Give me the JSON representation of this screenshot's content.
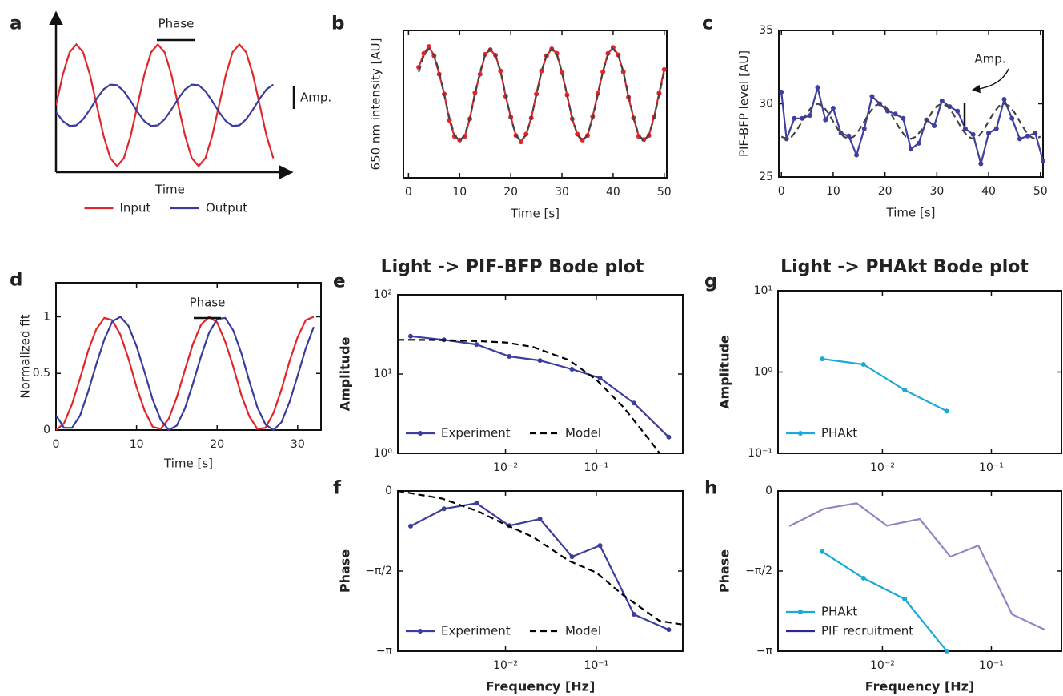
{
  "chart_data": [
    {
      "label": "a",
      "type": "line",
      "frame": "arrows",
      "xlabel": "Time",
      "xlim": [
        0,
        8.4
      ],
      "ylim": [
        -1.1,
        1.4
      ],
      "x": [
        0,
        0.25,
        0.5,
        0.75,
        1,
        1.25,
        1.5,
        1.75,
        2,
        2.25,
        2.5,
        2.75,
        3,
        3.25,
        3.5,
        3.75,
        4,
        4.25,
        4.5,
        4.75,
        5,
        5.25,
        5.5,
        5.75,
        6,
        6.25,
        6.5,
        6.75,
        7,
        7.25,
        7.5,
        7.75,
        8
      ],
      "series": [
        {
          "name": "Input",
          "color": "#e0262b",
          "values": [
            0,
            0.5,
            0.87,
            1,
            0.87,
            0.5,
            0,
            -0.5,
            -0.87,
            -1,
            -0.87,
            -0.5,
            0,
            0.5,
            0.87,
            1,
            0.87,
            0.5,
            0,
            -0.5,
            -0.87,
            -1,
            -0.87,
            -0.5,
            0,
            0.5,
            0.87,
            1,
            0.87,
            0.5,
            0,
            -0.5,
            -0.87
          ]
        },
        {
          "name": "Output",
          "color": "#3b3b9e",
          "values": [
            -0.11,
            -0.26,
            -0.34,
            -0.33,
            -0.23,
            -0.07,
            0.11,
            0.26,
            0.34,
            0.33,
            0.23,
            0.07,
            -0.11,
            -0.26,
            -0.34,
            -0.33,
            -0.23,
            -0.07,
            0.11,
            0.26,
            0.34,
            0.33,
            0.23,
            0.07,
            -0.11,
            -0.26,
            -0.34,
            -0.33,
            -0.23,
            -0.07,
            0.11,
            0.26,
            0.34
          ]
        }
      ],
      "legend": "below",
      "legend_orientation": "horizontal",
      "annotations": [
        "Phase",
        "Amp."
      ]
    },
    {
      "label": "b",
      "type": "line",
      "frame": "box",
      "xlabel": "Time [s]",
      "ylabel": "650 nm intensity [AU]",
      "xlim": [
        -1,
        50.5
      ],
      "ylim": [
        -1.8,
        1.4
      ],
      "xticks": [
        0,
        10,
        20,
        30,
        40,
        50
      ],
      "x": [
        2,
        3,
        4,
        5,
        6,
        7,
        8,
        9,
        10,
        11,
        12,
        13,
        14,
        15,
        16,
        17,
        18,
        19,
        20,
        21,
        22,
        23,
        24,
        25,
        26,
        27,
        28,
        29,
        30,
        31,
        32,
        33,
        34,
        35,
        36,
        37,
        38,
        39,
        40,
        41,
        42,
        43,
        44,
        45,
        46,
        47,
        48,
        49,
        50
      ],
      "series": [
        {
          "color": "#e0262b",
          "markers": true,
          "values": [
            0.6,
            0.9,
            1.05,
            0.85,
            0.45,
            0.02,
            -0.55,
            -0.9,
            -0.98,
            -0.9,
            -0.52,
            0.05,
            0.45,
            0.88,
            0.98,
            0.86,
            0.52,
            -0.03,
            -0.48,
            -0.88,
            -1.02,
            -0.85,
            -0.5,
            0.02,
            0.52,
            0.85,
            1.0,
            0.9,
            0.48,
            0,
            -0.52,
            -0.85,
            -0.98,
            -0.88,
            -0.47,
            0.03,
            0.5,
            0.9,
            1.03,
            0.87,
            0.5,
            -0.05,
            -0.5,
            -0.9,
            -0.97,
            -0.88,
            -0.48,
            0.04,
            0.55
          ]
        },
        {
          "color": "#444444",
          "dash": true,
          "values": [
            0.5,
            0.87,
            1,
            0.87,
            0.5,
            0,
            -0.5,
            -0.87,
            -1,
            -0.87,
            -0.5,
            0,
            0.5,
            0.87,
            1,
            0.87,
            0.5,
            0,
            -0.5,
            -0.87,
            -1,
            -0.87,
            -0.5,
            0,
            0.5,
            0.87,
            1,
            0.87,
            0.5,
            0,
            -0.5,
            -0.87,
            -1,
            -0.87,
            -0.5,
            0,
            0.5,
            0.87,
            1,
            0.87,
            0.5,
            0,
            -0.5,
            -0.87,
            -1,
            -0.87,
            -0.5,
            0,
            0.5
          ]
        }
      ]
    },
    {
      "label": "c",
      "type": "line",
      "frame": "box",
      "xlabel": "Time [s]",
      "ylabel": "PIF-BFP level [AU]",
      "xlim": [
        -0.5,
        50.5
      ],
      "ylim": [
        25,
        35
      ],
      "xticks": [
        0,
        10,
        20,
        30,
        40,
        50
      ],
      "yticks": [
        25,
        30,
        35
      ],
      "series": [
        {
          "color": "#3f3f9f",
          "markers": true,
          "x": [
            0,
            1,
            2.5,
            4,
            5.5,
            7,
            8.5,
            10,
            11.5,
            13,
            14.5,
            16,
            17.5,
            19,
            20.5,
            22,
            23.5,
            25,
            26.5,
            28,
            29.5,
            31,
            32.5,
            34,
            35.5,
            37,
            38.5,
            40,
            41.5,
            43,
            44.5,
            46,
            47.5,
            49,
            50.5
          ],
          "values": [
            30.8,
            27.6,
            29,
            29,
            29.2,
            31.1,
            28.9,
            29.7,
            28,
            27.8,
            26.5,
            28.3,
            30.5,
            30,
            29.5,
            29.3,
            29,
            26.9,
            27.3,
            28.9,
            28.5,
            30.2,
            29.8,
            29.5,
            28.3,
            27.9,
            25.9,
            28,
            28.3,
            30.3,
            29,
            27.6,
            27.8,
            28,
            26.1
          ]
        },
        {
          "color": "#444444",
          "dash": true,
          "x": [
            0,
            1,
            2,
            3,
            4,
            5,
            6,
            7,
            8,
            9,
            10,
            11,
            12,
            13,
            14,
            15,
            16,
            17,
            18,
            19,
            20,
            21,
            22,
            23,
            24,
            25,
            26,
            27,
            28,
            29,
            30,
            31,
            32,
            33,
            34,
            35,
            36,
            37,
            38,
            39,
            40,
            41,
            42,
            43,
            44,
            45,
            46,
            47,
            48,
            49,
            50
          ],
          "values": [
            27.76,
            27.6,
            27.76,
            28.2,
            28.8,
            29.4,
            29.84,
            30,
            29.84,
            29.4,
            28.8,
            28.2,
            27.76,
            27.6,
            27.76,
            28.2,
            28.8,
            29.4,
            29.84,
            30,
            29.84,
            29.4,
            28.8,
            28.2,
            27.76,
            27.6,
            27.76,
            28.2,
            28.8,
            29.4,
            29.84,
            30,
            29.84,
            29.4,
            28.8,
            28.2,
            27.76,
            27.6,
            27.76,
            28.2,
            28.8,
            29.4,
            29.84,
            30,
            29.84,
            29.4,
            28.8,
            28.2,
            27.76,
            27.6,
            27.76
          ]
        }
      ],
      "annotations": [
        "Amp."
      ]
    },
    {
      "label": "d",
      "type": "line",
      "frame": "box",
      "xlabel": "Time [s]",
      "ylabel": "Normalized fit",
      "xlim": [
        0,
        32.9
      ],
      "ylim": [
        0,
        1.3
      ],
      "xticks": [
        0,
        10,
        20,
        30
      ],
      "yticks": [
        0,
        0.5,
        1
      ],
      "x": [
        0,
        1,
        2,
        3,
        4,
        5,
        6,
        7,
        8,
        9,
        10,
        11,
        12,
        13,
        14,
        15,
        16,
        17,
        18,
        19,
        20,
        21,
        22,
        23,
        24,
        25,
        26,
        27,
        28,
        29,
        30,
        31,
        32
      ],
      "series": [
        {
          "color": "#e0262b",
          "values": [
            0,
            0.06,
            0.23,
            0.46,
            0.7,
            0.89,
            0.99,
            0.97,
            0.84,
            0.63,
            0.38,
            0.17,
            0.03,
            0.01,
            0.1,
            0.29,
            0.53,
            0.76,
            0.93,
            1,
            0.95,
            0.78,
            0.56,
            0.31,
            0.12,
            0.01,
            0.02,
            0.15,
            0.36,
            0.61,
            0.82,
            0.97,
            1
          ]
        },
        {
          "color": "#3b3b9e",
          "values": [
            0.13,
            0.02,
            0.02,
            0.13,
            0.34,
            0.58,
            0.8,
            0.96,
            1,
            0.92,
            0.74,
            0.51,
            0.27,
            0.09,
            0,
            0.04,
            0.19,
            0.41,
            0.65,
            0.86,
            0.98,
            0.99,
            0.88,
            0.68,
            0.43,
            0.2,
            0.05,
            0,
            0.07,
            0.25,
            0.48,
            0.72,
            0.91
          ]
        }
      ],
      "annotations": [
        "Phase"
      ]
    },
    {
      "label": "e",
      "title": "Light -> PIF-BFP Bode plot",
      "type": "line",
      "frame": "box",
      "ylabel": "Amplitude",
      "xlog": true,
      "ylog": true,
      "xlim": [
        0.00065,
        0.9
      ],
      "ylim": [
        1,
        100
      ],
      "xticks": [
        {
          "value": 0.01,
          "label": "10⁻²"
        },
        {
          "value": 0.1,
          "label": "10⁻¹"
        }
      ],
      "yticks": [
        {
          "value": 1,
          "label": "10⁰"
        },
        {
          "value": 10,
          "label": "10¹"
        },
        {
          "value": 100,
          "label": "10²"
        }
      ],
      "series": [
        {
          "name": "Experiment",
          "color": "#3d3d9c",
          "markers": true,
          "x": [
            0.0009,
            0.0021,
            0.0048,
            0.011,
            0.024,
            0.054,
            0.11,
            0.26,
            0.63
          ],
          "values": [
            30,
            27,
            23.6,
            16.7,
            14.8,
            11.5,
            8.9,
            4.3,
            1.6
          ]
        },
        {
          "name": "Model",
          "color": "#000000",
          "dash": true,
          "x": [
            0.00065,
            0.001,
            0.002,
            0.005,
            0.01,
            0.02,
            0.05,
            0.1,
            0.2,
            0.4,
            0.5
          ],
          "values": [
            27,
            27,
            26.8,
            26,
            25,
            22,
            15,
            8.5,
            3.8,
            1.4,
            1.0
          ]
        }
      ],
      "legend": "lower-left",
      "legend_orientation": "horizontal"
    },
    {
      "label": "f",
      "type": "line",
      "frame": "box",
      "xlabel": "Frequency [Hz]",
      "ylabel": "Phase",
      "xlog": true,
      "xlim": [
        0.00065,
        0.9
      ],
      "ylim": [
        -3.1416,
        0
      ],
      "xticks": [
        {
          "value": 0.01,
          "label": "10⁻²"
        },
        {
          "value": 0.1,
          "label": "10⁻¹"
        }
      ],
      "yticks": [
        {
          "value": -3.1416,
          "label": "−π"
        },
        {
          "value": -1.5708,
          "label": "−π/2"
        },
        0
      ],
      "series": [
        {
          "name": "Experiment",
          "color": "#3d3d9c",
          "markers": true,
          "x": [
            0.0009,
            0.0021,
            0.0048,
            0.011,
            0.024,
            0.054,
            0.11,
            0.26,
            0.63
          ],
          "values": [
            -0.69,
            -0.35,
            -0.24,
            -0.68,
            -0.55,
            -1.29,
            -1.07,
            -2.42,
            -2.72
          ]
        },
        {
          "name": "Model",
          "color": "#000000",
          "dash": true,
          "x": [
            0.00065,
            0.002,
            0.005,
            0.01,
            0.02,
            0.05,
            0.1,
            0.2,
            0.5,
            0.9
          ],
          "values": [
            0,
            -0.15,
            -0.4,
            -0.66,
            -0.9,
            -1.37,
            -1.6,
            -2.05,
            -2.55,
            -2.62
          ]
        }
      ],
      "legend": "lower-left",
      "legend_orientation": "horizontal"
    },
    {
      "label": "g",
      "title": "Light -> PHAkt Bode plot",
      "type": "line",
      "frame": "box",
      "ylabel": "Amplitude",
      "xlog": true,
      "ylog": true,
      "xlim": [
        0.0011,
        0.44
      ],
      "ylim": [
        0.1,
        10
      ],
      "xticks": [
        {
          "value": 0.01,
          "label": "10⁻²"
        },
        {
          "value": 0.1,
          "label": "10⁻¹"
        }
      ],
      "yticks": [
        {
          "value": 0.1,
          "label": "10⁻¹"
        },
        {
          "value": 1,
          "label": "10⁰"
        },
        {
          "value": 10,
          "label": "10¹"
        }
      ],
      "series": [
        {
          "name": "PHAkt",
          "color": "#1ba9d8",
          "markers": true,
          "x": [
            0.0028,
            0.0067,
            0.016,
            0.039
          ],
          "values": [
            1.45,
            1.24,
            0.6,
            0.33
          ]
        }
      ],
      "legend": "lower-left",
      "legend_orientation": "vertical"
    },
    {
      "label": "h",
      "type": "line",
      "frame": "box",
      "xlabel": "Frequency [Hz]",
      "ylabel": "Phase",
      "xlog": true,
      "xlim": [
        0.0011,
        0.44
      ],
      "ylim": [
        -3.1416,
        0
      ],
      "xticks": [
        {
          "value": 0.01,
          "label": "10⁻²"
        },
        {
          "value": 0.1,
          "label": "10⁻¹"
        }
      ],
      "yticks": [
        {
          "value": -3.1416,
          "label": "−π"
        },
        {
          "value": -1.5708,
          "label": "−π/2"
        },
        0
      ],
      "series": [
        {
          "name": "PHAkt",
          "color": "#1ba9d8",
          "markers": true,
          "x": [
            0.0028,
            0.0067,
            0.016,
            0.039
          ],
          "values": [
            -1.19,
            -1.71,
            -2.12,
            -3.14
          ]
        },
        {
          "name": "PIF recruitment",
          "color": "#2e2596",
          "opacity": 0.55,
          "x": [
            0.0014,
            0.0029,
            0.0058,
            0.011,
            0.022,
            0.042,
            0.076,
            0.155,
            0.31
          ],
          "values": [
            -0.69,
            -0.35,
            -0.24,
            -0.68,
            -0.55,
            -1.29,
            -1.07,
            -2.42,
            -2.72
          ]
        }
      ],
      "legend": "lower-left",
      "legend_orientation": "vertical"
    }
  ]
}
